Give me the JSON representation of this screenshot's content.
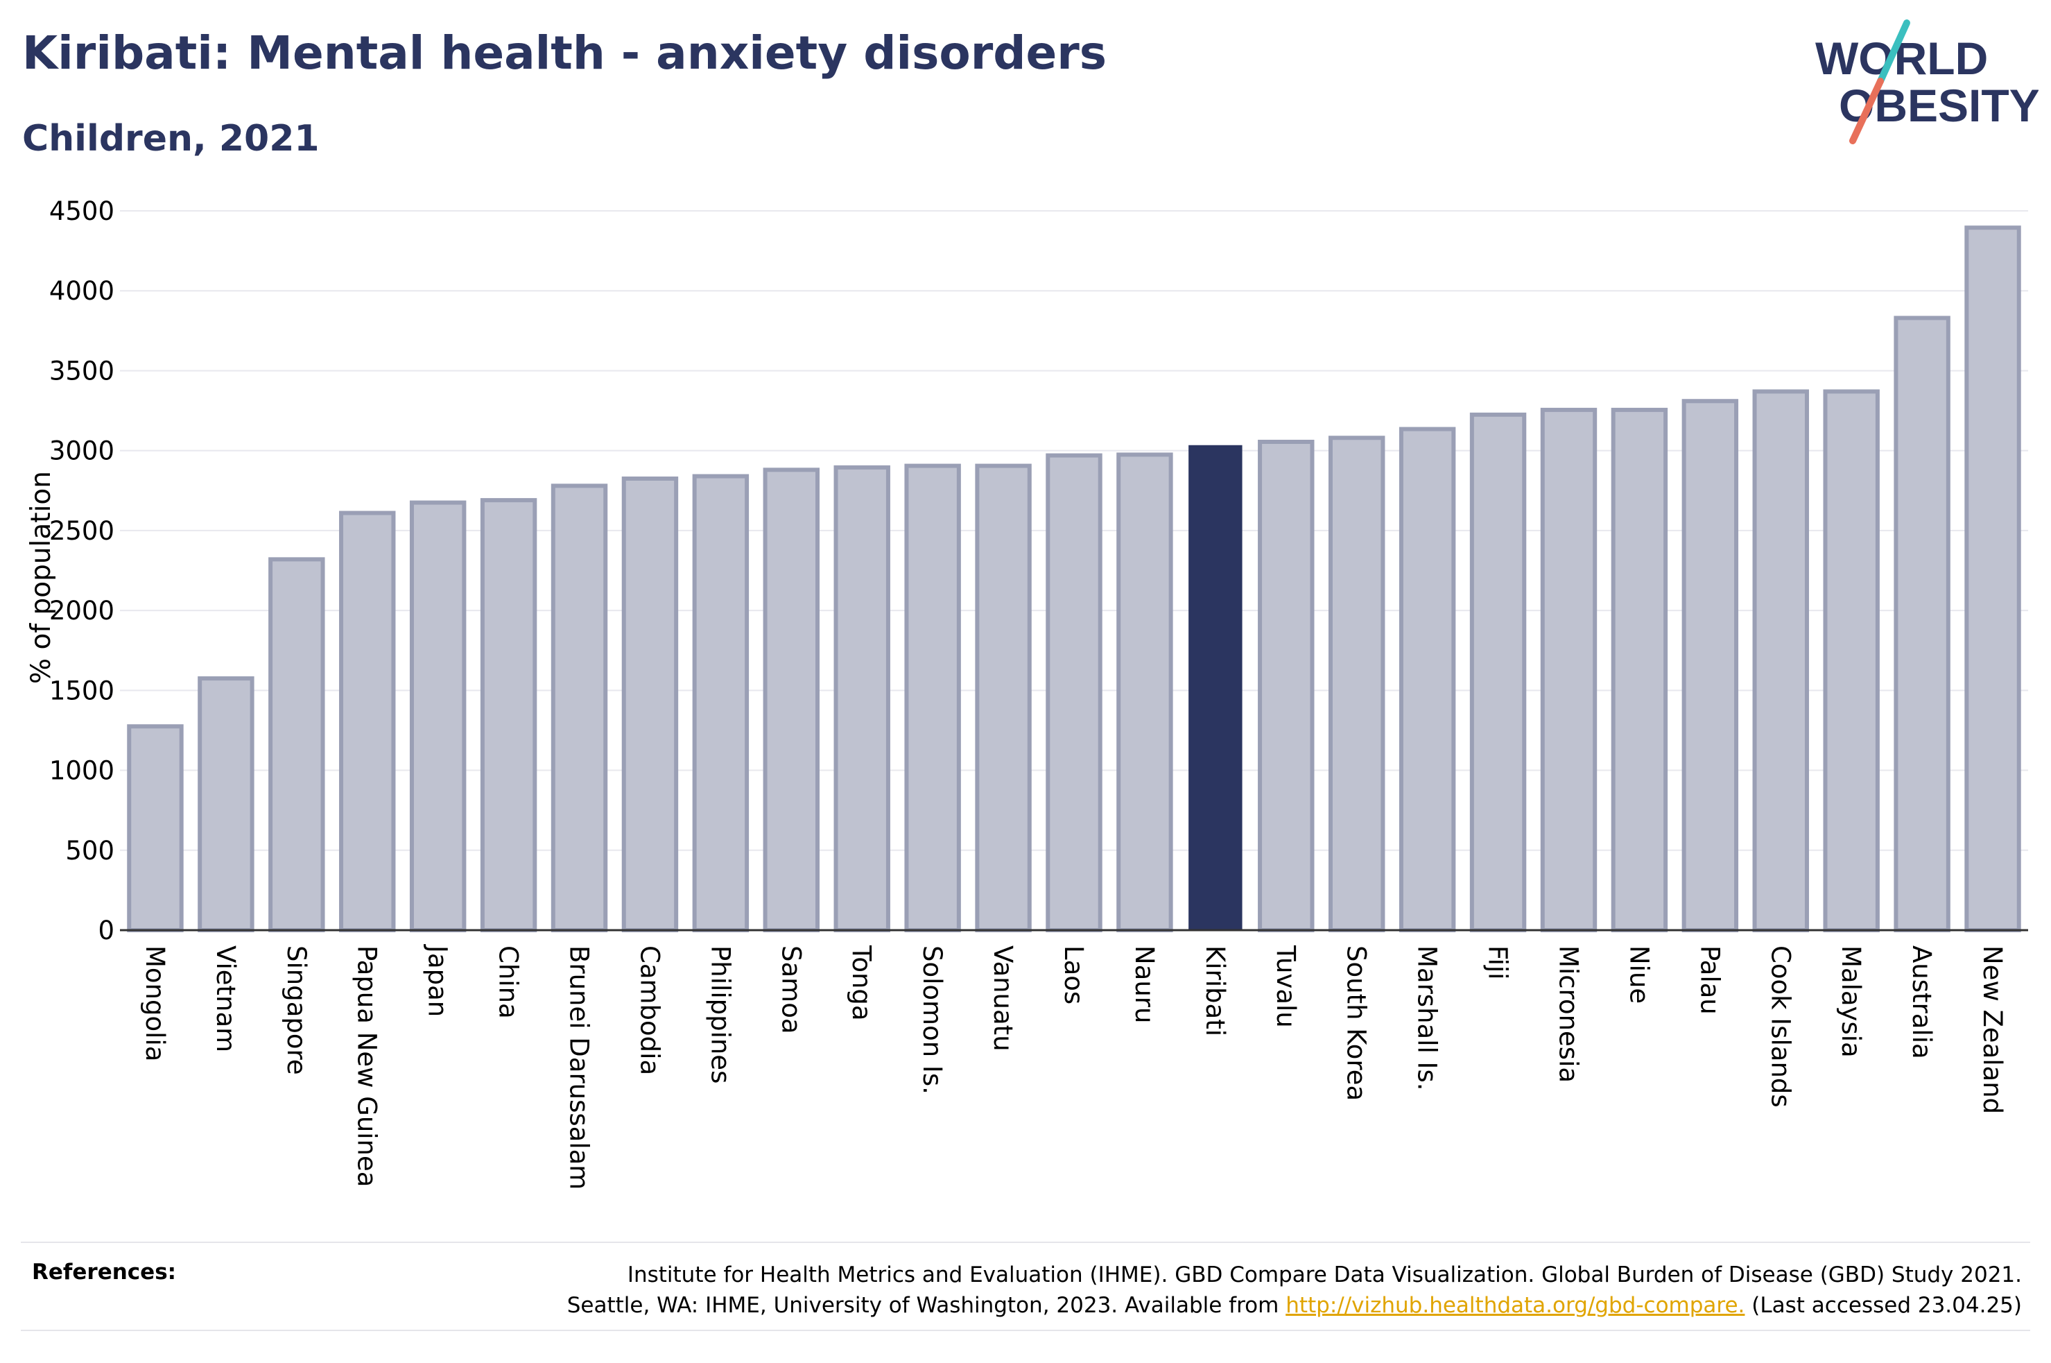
{
  "header": {
    "title": "Kiribati: Mental health - anxiety disorders",
    "subtitle": "Children, 2021"
  },
  "logo": {
    "line1": "WORLD",
    "line2": "OBESITY"
  },
  "colors": {
    "bar_fill": "#bfc2d0",
    "bar_stroke": "#9a9fb5",
    "highlight": "#2b3560",
    "grid": "#e8e8ee",
    "logo_teal": "#3bbfbf",
    "logo_coral": "#e8705a"
  },
  "chart_data": {
    "type": "bar",
    "ylabel": "% of population",
    "ylim": [
      0,
      4500
    ],
    "yticks": [
      0,
      500,
      1000,
      1500,
      2000,
      2500,
      3000,
      3500,
      4000,
      4500
    ],
    "grid": true,
    "highlight": "Kiribati",
    "categories": [
      "Mongolia",
      "Vietnam",
      "Singapore",
      "Papua New Guinea",
      "Japan",
      "China",
      "Brunei Darussalam",
      "Cambodia",
      "Philippines",
      "Samoa",
      "Tonga",
      "Solomon Is.",
      "Vanuatu",
      "Laos",
      "Nauru",
      "Kiribati",
      "Tuvalu",
      "South Korea",
      "Marshall Is.",
      "Fiji",
      "Micronesia",
      "Niue",
      "Palau",
      "Cook Islands",
      "Malaysia",
      "Australia",
      "New Zealand"
    ],
    "values": [
      1275,
      1575,
      2320,
      2610,
      2675,
      2690,
      2780,
      2825,
      2840,
      2880,
      2895,
      2905,
      2905,
      2970,
      2975,
      3030,
      3055,
      3080,
      3135,
      3225,
      3255,
      3255,
      3310,
      3370,
      3370,
      3830,
      4395
    ]
  },
  "references": {
    "label": "References:",
    "line1": "Institute for Health Metrics and Evaluation (IHME). GBD Compare Data Visualization. Global Burden of Disease (GBD) Study 2021.",
    "line2_prefix": "Seattle, WA: IHME, University of Washington, 2023. Available from ",
    "link": "http://vizhub.healthdata.org/gbd-compare.",
    "line2_suffix": " (Last accessed 23.04.25)"
  }
}
